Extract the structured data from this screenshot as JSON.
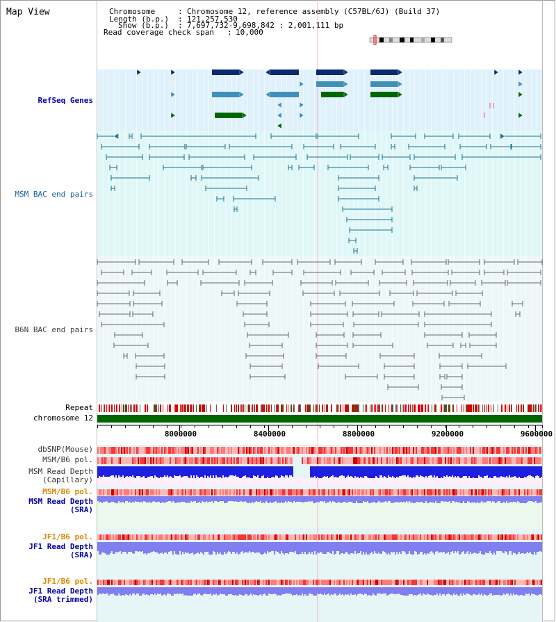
{
  "view_title": "Map View",
  "info": {
    "chromosome_label": "Chromosome",
    "chromosome_value": "Chromosome 12, reference assembly (C57BL/6J) (Build 37)",
    "length_label": "Length (b.p.)",
    "length_value": "121,257,530",
    "show_label": "Show (b.p.)",
    "show_value": "7,697,732-9,698,842 : 2,001,111 bp",
    "span_label": "Read coverage check span",
    "span_value": "10,000"
  },
  "tracks": {
    "refseq": "RefSeq Genes",
    "msm_bac": "MSM BAC end pairs",
    "b6n_bac": "B6N BAC end pairs",
    "repeat": "Repeat",
    "chromosome": "chromosome 12",
    "dbsnp": "dbSNP(Mouse)",
    "msm_b6_pol": "MSM/B6 pol.",
    "msm_depth_cap_1": "MSM Read Depth",
    "msm_depth_cap_2": "(Capillary)",
    "msm_b6_pol_2": "MSM/B6 pol.",
    "msm_depth_sra_1": "MSM Read Depth",
    "msm_depth_sra_2": "(SRA)",
    "jf1_pol": "JF1/B6 pol.",
    "jf1_depth_sra_1": "JF1 Read Depth",
    "jf1_depth_sra_2": "(SRA)",
    "jf1_pol_2": "JF1/B6 pol.",
    "jf1_depth_trim_1": "JF1 Read Depth",
    "jf1_depth_trim_2": "(SRA trimmed)"
  },
  "axis": {
    "ticks": [
      "8000000",
      "8400000",
      "8800000",
      "9200000",
      "9600000"
    ]
  },
  "colors": {
    "refseq_bg": "#dff1fb",
    "msm_bg": "#e0f7f7",
    "b6n_bg": "#eef7f7",
    "gene_dark": "#0a2a6e",
    "gene_light": "#3f8fb8",
    "gene_green": "#006600",
    "msm_line": "#1a6f8f",
    "b6n_line": "#666666",
    "repeat_red": "#dd0000",
    "chrom_green": "#006600",
    "depth_blue": "#1f1fe0",
    "depth_light": "#7f7ff0",
    "pol_red": "#ee3333",
    "label_blue": "#0000aa",
    "label_orange": "#dd8800"
  }
}
